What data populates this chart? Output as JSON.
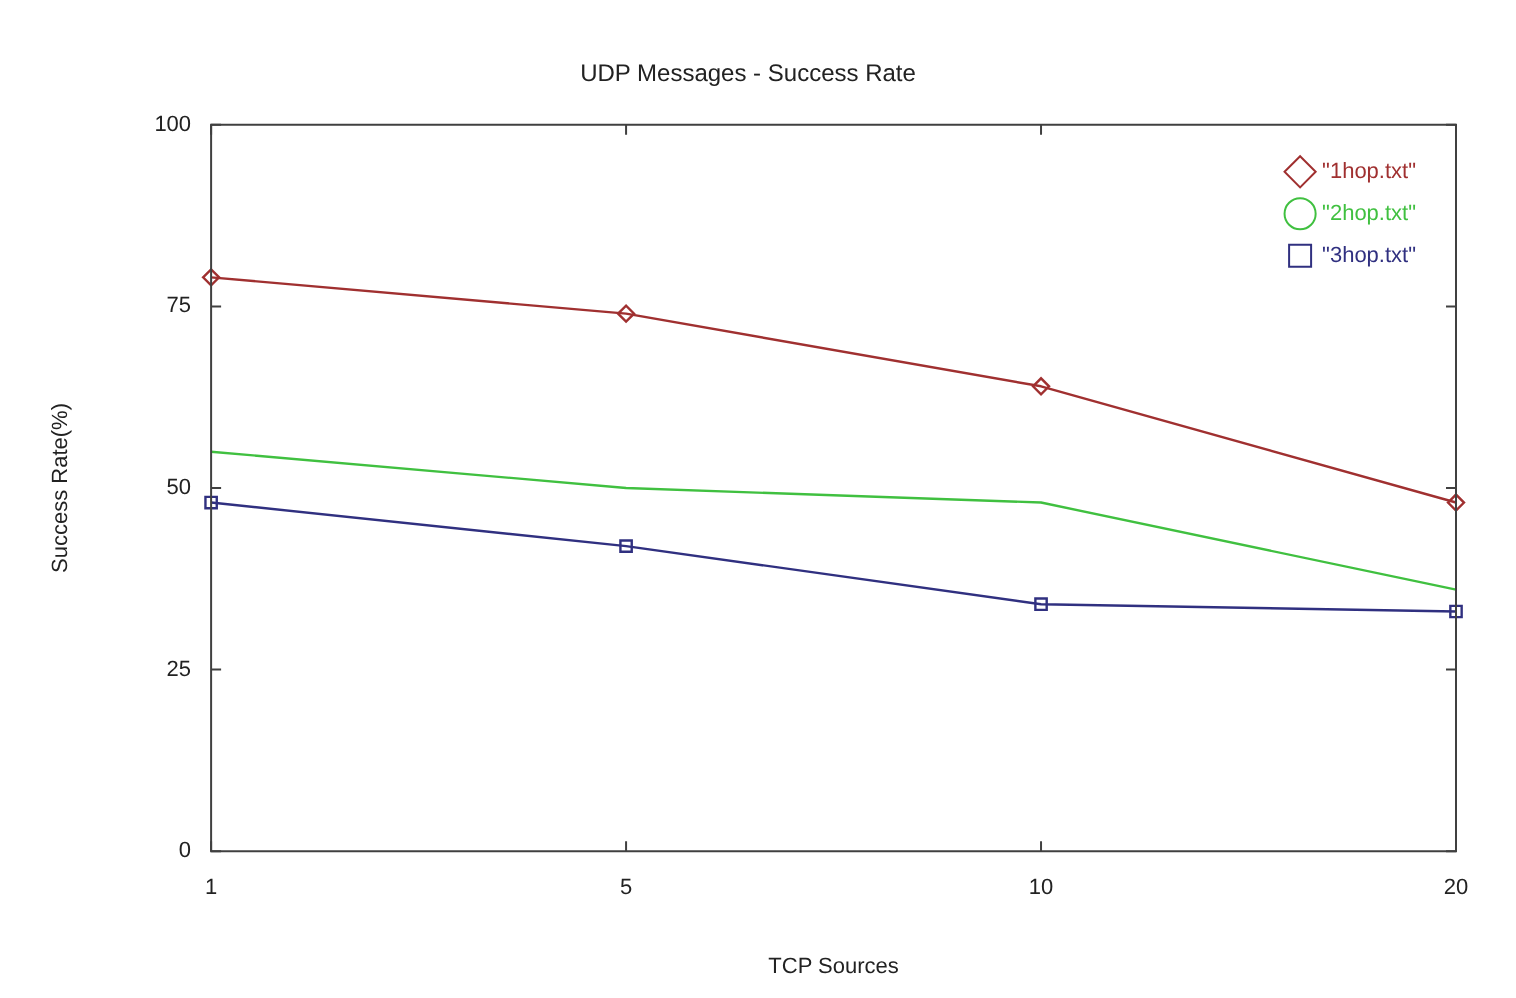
{
  "chart_data": {
    "type": "line",
    "title": "UDP Messages - Success Rate",
    "xlabel": "TCP Sources",
    "ylabel": "Success Rate(%)",
    "categories": [
      "1",
      "5",
      "10",
      "20"
    ],
    "series": [
      {
        "name": "\"1hop.txt\"",
        "color": "#a03030",
        "values": [
          79,
          74,
          64,
          48
        ],
        "marker": "diamond"
      },
      {
        "name": "\"2hop.txt\"",
        "color": "#40c040",
        "values": [
          55,
          50,
          48,
          36
        ],
        "marker": "none"
      },
      {
        "name": "\"3hop.txt\"",
        "color": "#303080",
        "values": [
          48,
          42,
          34,
          33
        ],
        "marker": "square"
      }
    ],
    "ylim": [
      0,
      100
    ],
    "yticks": [
      0,
      25,
      50,
      75,
      100
    ],
    "grid": false,
    "legend": "top right",
    "line_style": "solid"
  }
}
